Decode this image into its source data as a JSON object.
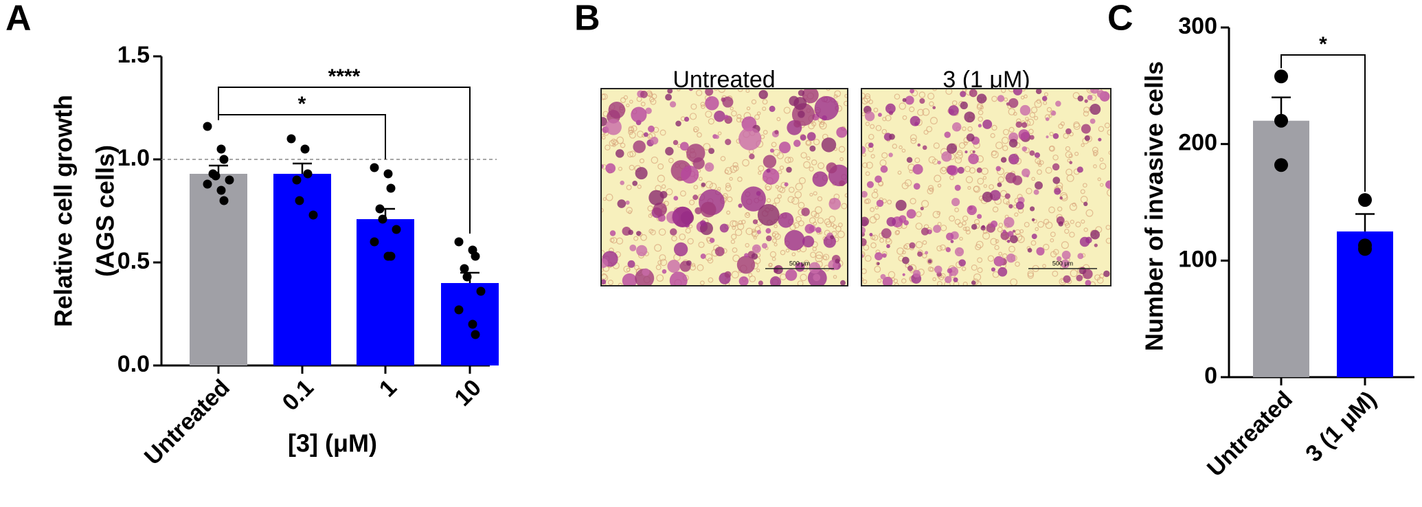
{
  "chart_data": [
    {
      "type": "bar",
      "panel_label": "A",
      "y_label": [
        "Relative cell growth",
        "(AGS cells)"
      ],
      "x_label": "[3] (μM)",
      "categories": [
        "Untreated",
        "0.1",
        "1",
        "10"
      ],
      "values": [
        0.93,
        0.93,
        0.71,
        0.4
      ],
      "errors": [
        0.04,
        0.05,
        0.05,
        0.05
      ],
      "points": [
        [
          1.16,
          1.05,
          1.0,
          0.93,
          0.92,
          0.9,
          0.88,
          0.85,
          0.8
        ],
        [
          1.1,
          1.05,
          0.93,
          0.9,
          0.8,
          0.73
        ],
        [
          0.96,
          0.93,
          0.86,
          0.76,
          0.71,
          0.66,
          0.6,
          0.53,
          0.53
        ],
        [
          0.6,
          0.56,
          0.53,
          0.47,
          0.43,
          0.36,
          0.27,
          0.2,
          0.15
        ]
      ],
      "colors": [
        "#a0a0a6",
        "#0000ff",
        "#0000ff",
        "#0000ff"
      ],
      "ylim": [
        0,
        1.5
      ],
      "yticks": [
        {
          "value": 0,
          "label": "0.0"
        },
        0.5,
        {
          "value": 1,
          "label": "1.0"
        },
        1.5
      ],
      "reference_line": 1,
      "significance": [
        {
          "between": [
            "Untreated",
            "1"
          ],
          "label": "*"
        },
        {
          "between": [
            "Untreated",
            "10"
          ],
          "label": "****"
        }
      ]
    },
    {
      "type": "bar",
      "panel_label": "C",
      "y_label": [
        "Number of invasive cells"
      ],
      "categories": [
        "Untreated",
        "3 (1 μM)"
      ],
      "values": [
        220,
        125
      ],
      "errors": [
        20,
        15
      ],
      "points": [
        [
          258,
          220,
          182
        ],
        [
          152,
          113,
          110
        ]
      ],
      "colors": [
        "#a0a0a6",
        "#0000ff"
      ],
      "ylim": [
        0,
        300
      ],
      "yticks": [
        0,
        100,
        200,
        300
      ],
      "significance": [
        {
          "between": [
            "Untreated",
            "3 (1 μM)"
          ],
          "label": "*"
        }
      ]
    }
  ],
  "image_panel": {
    "panel_label": "B",
    "titles": [
      "Untreated",
      "3 (1 μM)"
    ],
    "scale_bar": "500 μm"
  }
}
